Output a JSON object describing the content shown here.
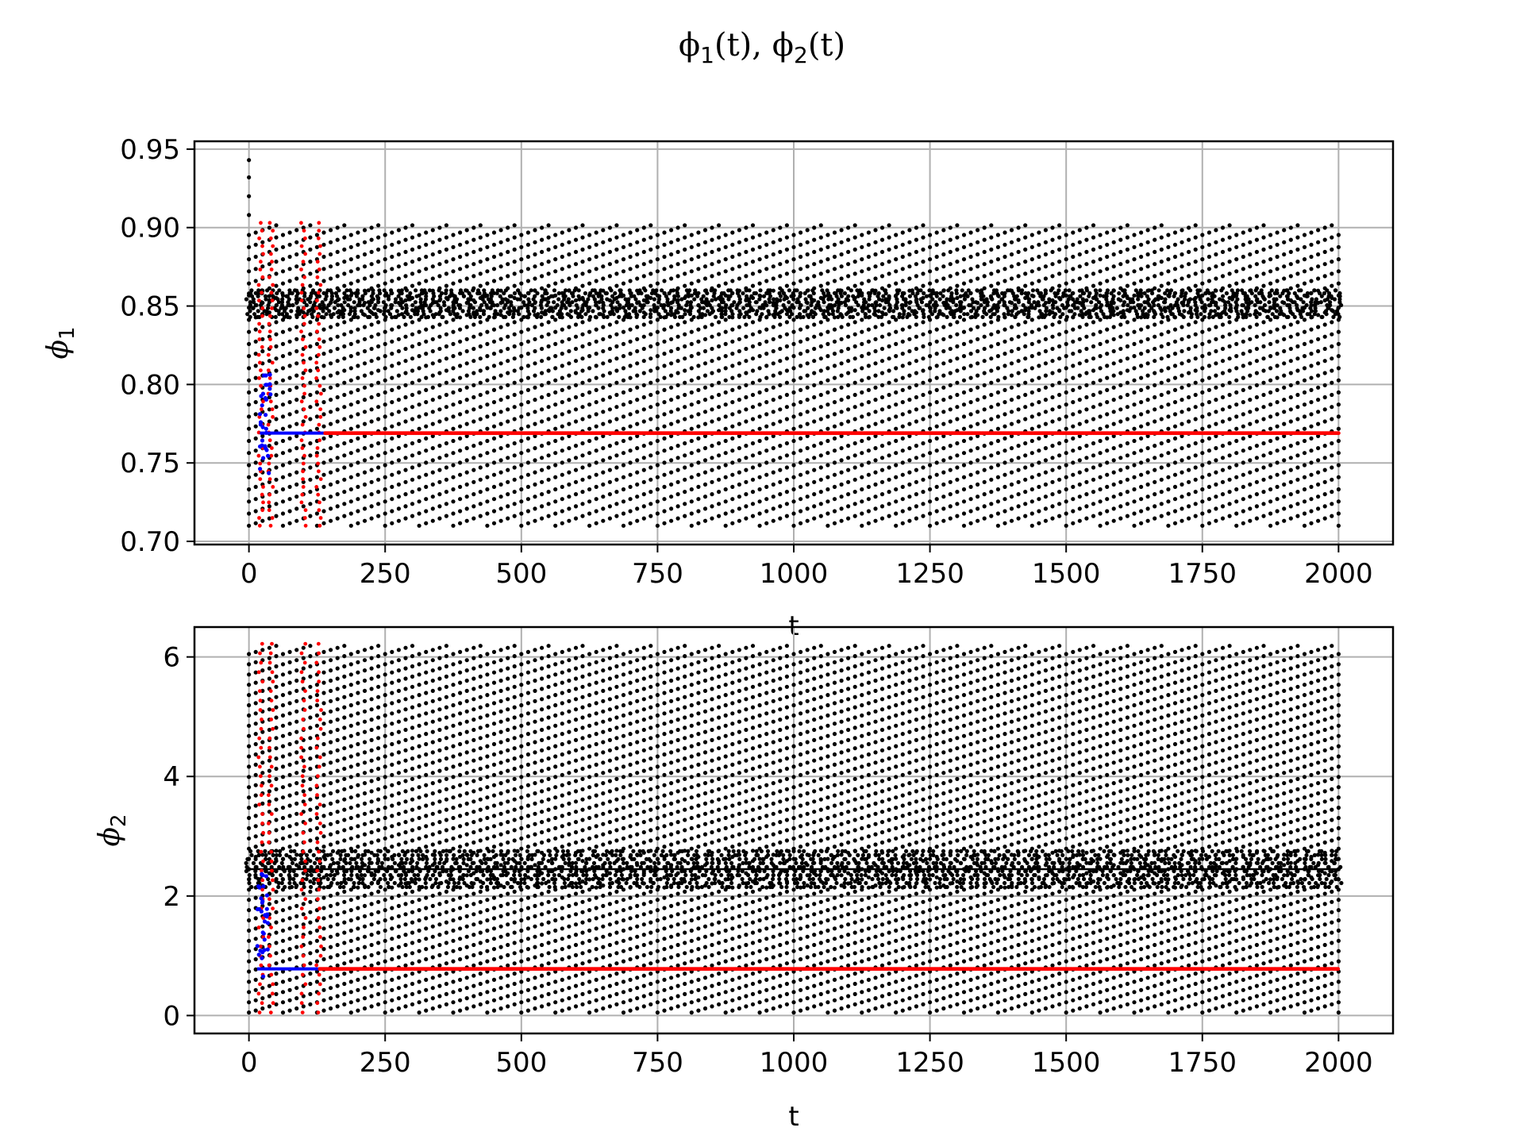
{
  "figure_title": {
    "phi": "ϕ",
    "sub1": "1",
    "sub2": "2",
    "arg": "(t)",
    "sep": ", "
  },
  "chart_data": [
    {
      "type": "scatter",
      "panel": "top",
      "ylabel_symbol": "ϕ",
      "ylabel_sub": "1",
      "xlabel": "t",
      "xlim": [
        -100,
        2100
      ],
      "ylim": [
        0.698,
        0.955
      ],
      "xticks": [
        0,
        250,
        500,
        750,
        1000,
        1250,
        1500,
        1750,
        2000
      ],
      "xtick_labels": [
        "0",
        "250",
        "500",
        "750",
        "1000",
        "1250",
        "1500",
        "1750",
        "2000"
      ],
      "yticks": [
        0.7,
        0.75,
        0.8,
        0.85,
        0.9,
        0.95
      ],
      "ytick_labels": [
        "0.70",
        "0.75",
        "0.80",
        "0.85",
        "0.90",
        "0.95"
      ],
      "grid": true,
      "series": [
        {
          "color": "#000000",
          "t_range": [
            0,
            2000
          ],
          "lattice_min": 0.71,
          "lattice_max": 0.903,
          "dense_band": [
            0.843,
            0.86
          ],
          "initial_points": [
            [
              0,
              0.943
            ],
            [
              0,
              0.932
            ],
            [
              0,
              0.92
            ],
            [
              0,
              0.908
            ],
            [
              0,
              0.858
            ]
          ]
        },
        {
          "color": "#ff0000",
          "steady_value": 0.769,
          "t_range": [
            140,
            2000
          ],
          "transient_columns_t": [
            22,
            40,
            100,
            128
          ],
          "transient_range": [
            0.71,
            0.903
          ]
        },
        {
          "color": "#0000ff",
          "steady_value": 0.769,
          "t_range": [
            20,
            140
          ],
          "transient_range": [
            0.74,
            0.81
          ]
        }
      ]
    },
    {
      "type": "scatter",
      "panel": "bottom",
      "ylabel_symbol": "ϕ",
      "ylabel_sub": "2",
      "xlabel": "t",
      "xlim": [
        -100,
        2100
      ],
      "ylim": [
        -0.3,
        6.5
      ],
      "xticks": [
        0,
        250,
        500,
        750,
        1000,
        1250,
        1500,
        1750,
        2000
      ],
      "xtick_labels": [
        "0",
        "250",
        "500",
        "750",
        "1000",
        "1250",
        "1500",
        "1750",
        "2000"
      ],
      "yticks": [
        0,
        2,
        4,
        6
      ],
      "ytick_labels": [
        "0",
        "2",
        "4",
        "6"
      ],
      "grid": true,
      "series": [
        {
          "color": "#000000",
          "t_range": [
            0,
            2000
          ],
          "lattice_min": 0.05,
          "lattice_max": 6.22,
          "dense_band": [
            2.15,
            2.75
          ],
          "baseline": 2.45
        },
        {
          "color": "#ff0000",
          "steady_value": 0.78,
          "t_range": [
            130,
            2000
          ],
          "transient_columns_t": [
            22,
            40,
            100,
            128
          ],
          "transient_range": [
            0.05,
            6.22
          ]
        },
        {
          "color": "#0000ff",
          "steady_value": 0.78,
          "t_range": [
            15,
            130
          ],
          "transient_range": [
            0.6,
            2.4
          ]
        }
      ]
    }
  ]
}
